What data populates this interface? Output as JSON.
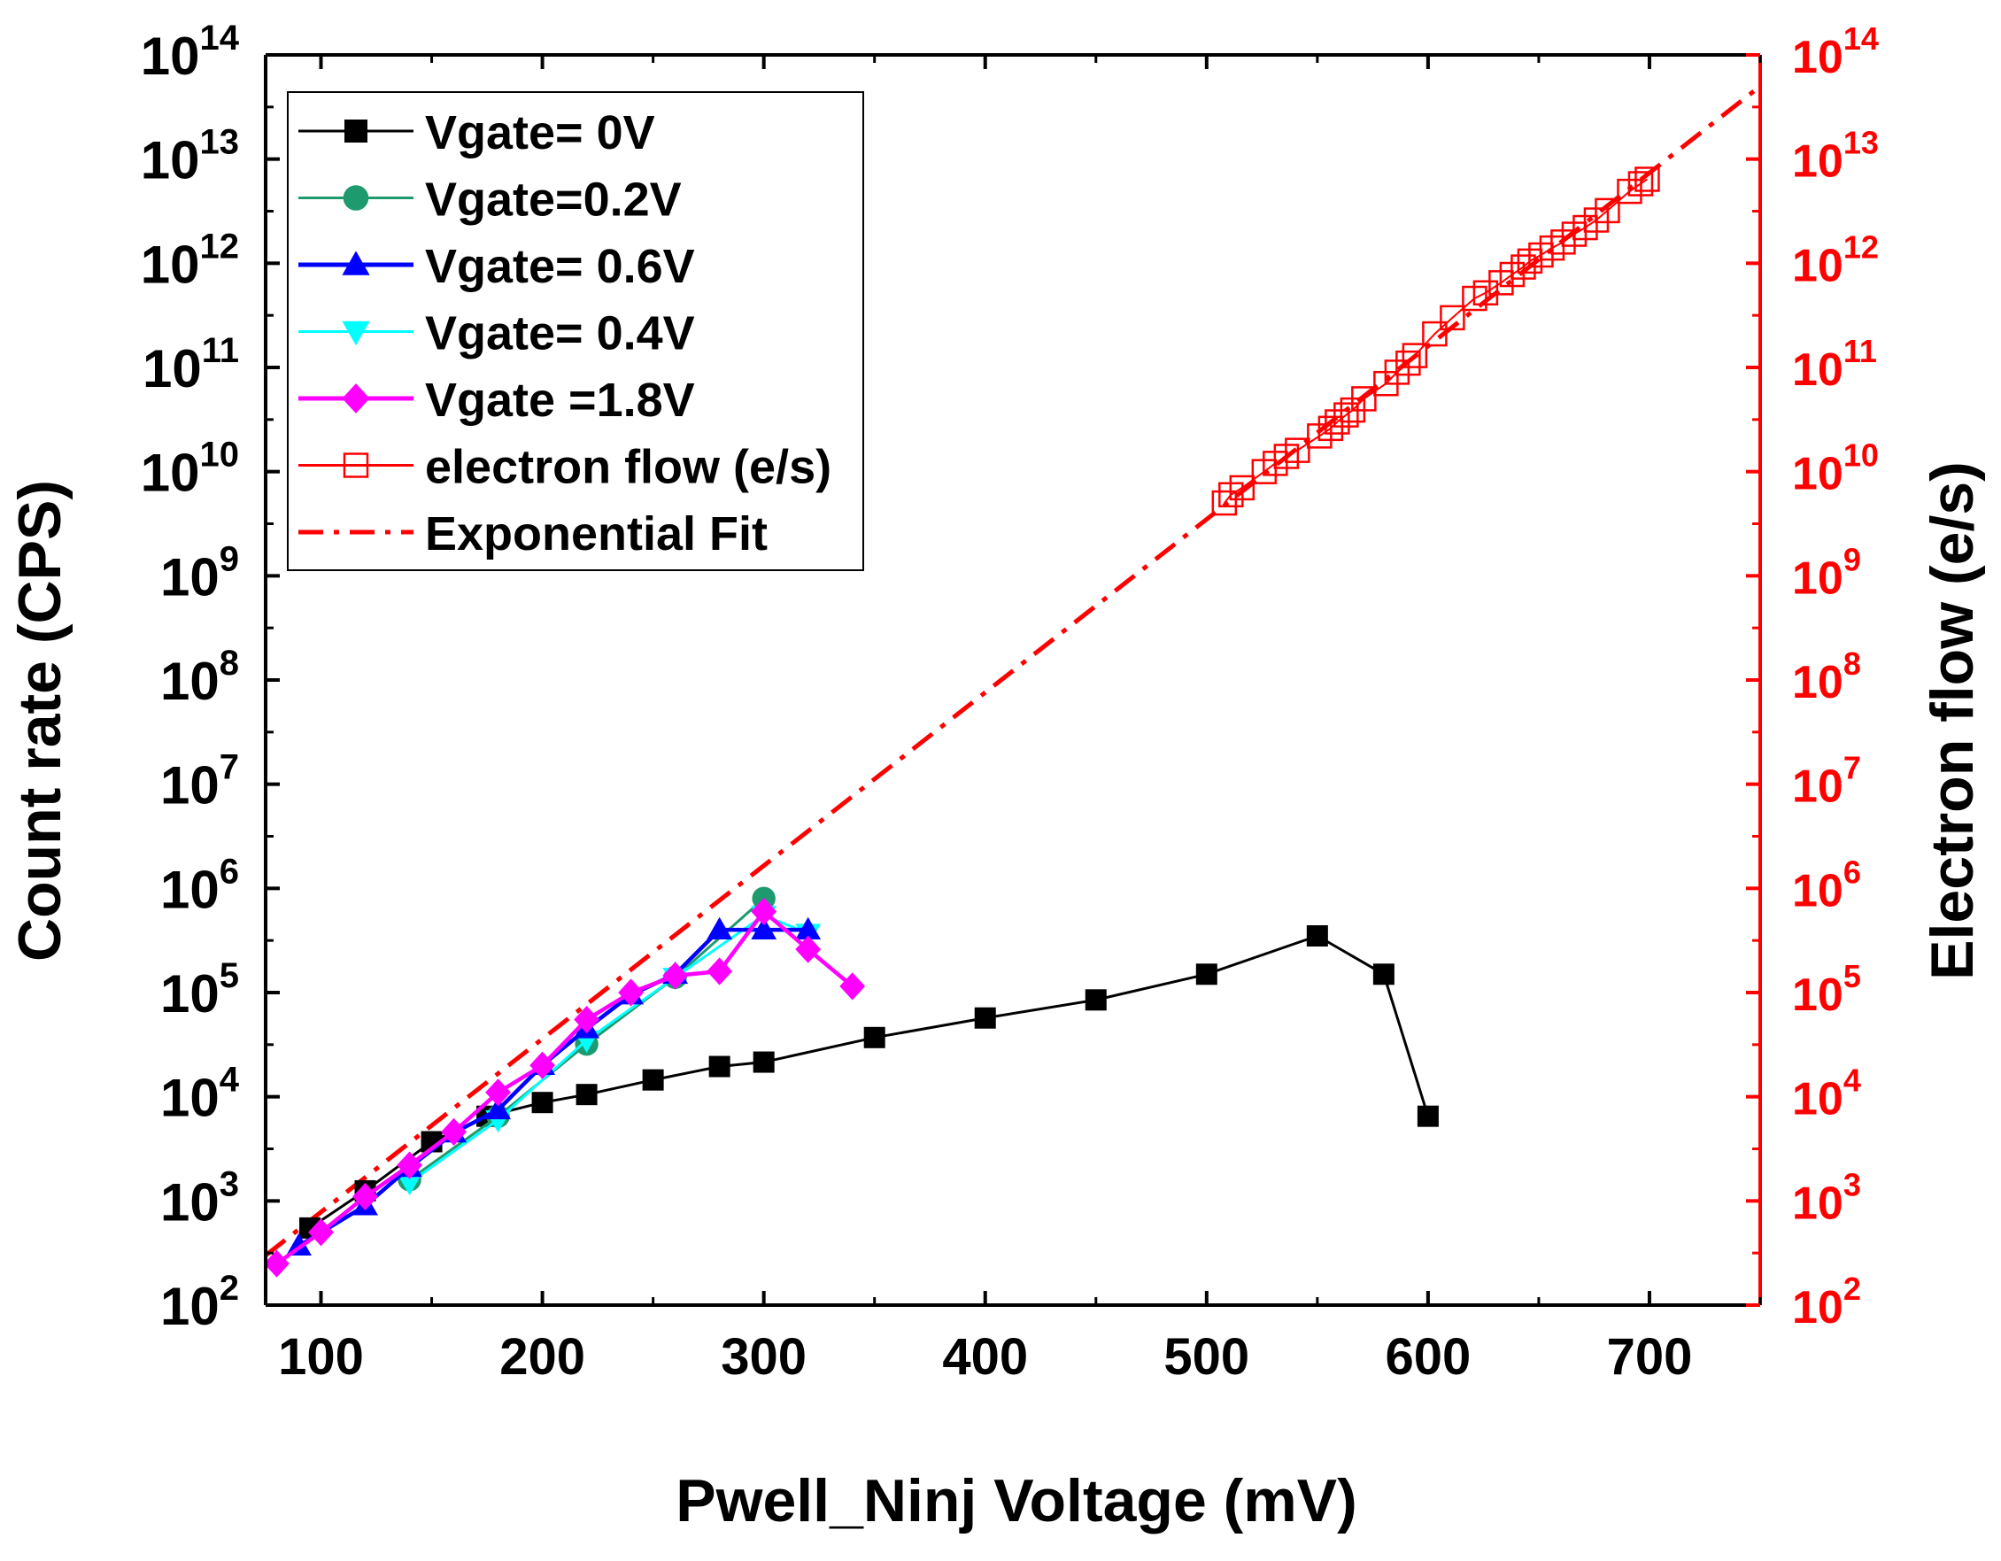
{
  "chart_data": {
    "type": "scatter",
    "xlabel": "Pwell_Ninj Voltage (mV)",
    "ylabel_left": "Count rate (CPS)",
    "ylabel_right": "Electron flow (e/s)",
    "xlim": [
      75,
      750
    ],
    "ylim_log10": [
      2,
      14
    ],
    "x_ticks": [
      100,
      200,
      300,
      400,
      500,
      600,
      700
    ],
    "y_ticks_exponents": [
      2,
      3,
      4,
      5,
      6,
      7,
      8,
      9,
      10,
      11,
      12,
      13,
      14
    ],
    "y_tick_base": "10",
    "right_axis_color": "#ff0000",
    "series": [
      {
        "name": "Vgate= 0V",
        "color": "#000000",
        "marker": "square",
        "x": [
          95,
          120,
          150,
          175,
          200,
          220,
          250,
          280,
          300,
          350,
          400,
          450,
          500,
          550,
          580,
          600
        ],
        "y": [
          550,
          1250,
          3700,
          6500,
          8800,
          10500,
          14500,
          19500,
          21500,
          37000,
          57000,
          85000,
          150000,
          350000,
          150000,
          6500
        ]
      },
      {
        "name": "Vgate=0.2V",
        "color": "#1e9b6e",
        "marker": "circle",
        "x": [
          140,
          180,
          220,
          260,
          300
        ],
        "y": [
          1600,
          6500,
          32000,
          140000,
          800000
        ]
      },
      {
        "name": "Vgate= 0.6V",
        "color": "#0000ff",
        "marker": "triangle-up",
        "x": [
          90,
          120,
          140,
          160,
          180,
          200,
          220,
          240,
          260,
          280,
          300,
          320
        ],
        "y": [
          370,
          900,
          2100,
          4500,
          7500,
          20000,
          45000,
          95000,
          150000,
          400000,
          400000,
          400000
        ]
      },
      {
        "name": "Vgate= 0.4V",
        "color": "#00ffff",
        "marker": "triangle-down",
        "x": [
          140,
          180,
          220,
          260,
          300,
          320
        ],
        "y": [
          1500,
          6000,
          35000,
          140000,
          550000,
          370000
        ]
      },
      {
        "name": "Vgate =1.8V",
        "color": "#ff00ff",
        "marker": "diamond",
        "x": [
          80,
          100,
          120,
          140,
          160,
          180,
          200,
          220,
          240,
          260,
          280,
          300,
          320,
          340
        ],
        "y": [
          250,
          500,
          1100,
          2200,
          4600,
          11000,
          20000,
          55000,
          100000,
          145000,
          160000,
          600000,
          260000,
          115000
        ]
      },
      {
        "name": "electron flow (e/s)",
        "color": "#ff0000",
        "marker": "open-square",
        "axis": "right",
        "x": [
          508,
          511,
          516,
          526,
          531,
          536,
          541,
          551,
          556,
          559,
          563,
          566,
          571,
          581,
          586,
          591,
          594,
          603,
          611,
          621,
          626,
          633,
          638,
          643,
          646,
          651,
          656,
          661,
          666,
          671,
          676,
          681,
          691,
          696,
          699
        ],
        "y": [
          5000000000.0,
          6000000000.0,
          7000000000.0,
          10000000000.0,
          12000000000.0,
          14000000000.0,
          16000000000.0,
          22000000000.0,
          26000000000.0,
          30000000000.0,
          35000000000.0,
          39000000000.0,
          50000000000.0,
          70000000000.0,
          90000000000.0,
          110000000000.0,
          130000000000.0,
          210000000000.0,
          300000000000.0,
          460000000000.0,
          520000000000.0,
          650000000000.0,
          780000000000.0,
          920000000000.0,
          1050000000000.0,
          1200000000000.0,
          1400000000000.0,
          1600000000000.0,
          1900000000000.0,
          2200000000000.0,
          2600000000000.0,
          3200000000000.0,
          4900000000000.0,
          5800000000000.0,
          6400000000000.0
        ]
      },
      {
        "name": "Exponential Fit",
        "color": "#ff0000",
        "line": "dash-dot",
        "x": [
          75,
          750
        ],
        "y": [
          300,
          50000000000000.0
        ]
      }
    ],
    "legend": {
      "position": "top-left",
      "entries": [
        "Vgate= 0V",
        "Vgate=0.2V",
        "Vgate= 0.6V",
        "Vgate= 0.4V",
        "Vgate =1.8V",
        "electron flow (e/s)",
        "Exponential Fit"
      ]
    }
  }
}
